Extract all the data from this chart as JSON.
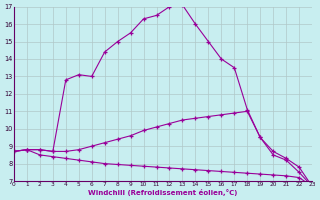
{
  "xlabel": "Windchill (Refroidissement éolien,°C)",
  "background_color": "#c8eef0",
  "grid_color": "#b0c8c8",
  "line_color": "#990099",
  "xlim": [
    0,
    23
  ],
  "ylim": [
    7,
    17
  ],
  "xticks": [
    0,
    1,
    2,
    3,
    4,
    5,
    6,
    7,
    8,
    9,
    10,
    11,
    12,
    13,
    14,
    15,
    16,
    17,
    18,
    19,
    20,
    21,
    22,
    23
  ],
  "yticks": [
    7,
    8,
    9,
    10,
    11,
    12,
    13,
    14,
    15,
    16,
    17
  ],
  "curve1_x": [
    0,
    1,
    2,
    3,
    4,
    5,
    6,
    7,
    8,
    9,
    10,
    11,
    12,
    13,
    14,
    15,
    16,
    17,
    18,
    19,
    20,
    21,
    22,
    23
  ],
  "curve1_y": [
    8.7,
    8.8,
    8.5,
    8.4,
    8.3,
    8.2,
    8.1,
    8.0,
    7.95,
    7.9,
    7.85,
    7.8,
    7.75,
    7.7,
    7.65,
    7.6,
    7.55,
    7.5,
    7.45,
    7.4,
    7.35,
    7.3,
    7.2,
    6.7
  ],
  "curve2_x": [
    0,
    1,
    2,
    3,
    4,
    5,
    6,
    7,
    8,
    9,
    10,
    11,
    12,
    13,
    14,
    15,
    16,
    17,
    18,
    19,
    20,
    21,
    22,
    23
  ],
  "curve2_y": [
    8.7,
    8.8,
    8.8,
    8.7,
    8.7,
    8.8,
    9.0,
    9.2,
    9.4,
    9.6,
    9.9,
    10.1,
    10.3,
    10.5,
    10.6,
    10.7,
    10.8,
    10.9,
    11.0,
    9.5,
    8.7,
    8.3,
    7.8,
    6.7
  ],
  "curve3_x": [
    0,
    1,
    2,
    3,
    4,
    5,
    6,
    7,
    8,
    9,
    10,
    11,
    12,
    13,
    14,
    15,
    16,
    17,
    18,
    19,
    20,
    21,
    22,
    23
  ],
  "curve3_y": [
    8.7,
    8.8,
    8.8,
    8.7,
    12.8,
    13.1,
    13.0,
    14.4,
    15.0,
    15.5,
    16.3,
    16.5,
    17.0,
    17.1,
    16.0,
    15.0,
    14.0,
    13.5,
    11.1,
    9.5,
    8.5,
    8.2,
    7.5,
    6.7
  ]
}
